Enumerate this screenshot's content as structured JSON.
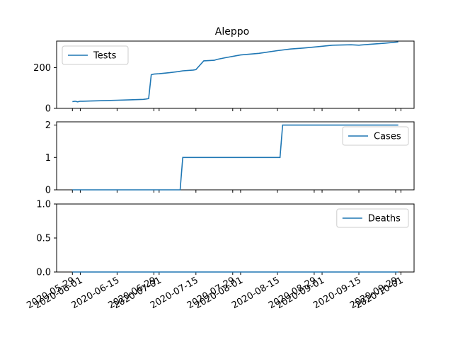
{
  "figure": {
    "title": "Aleppo",
    "series_color": "#1f77b4"
  },
  "shared_x": {
    "type": "date",
    "ticks": [
      "2020-05-29",
      "2020-06-01",
      "2020-06-15",
      "2020-06-29",
      "2020-07-01",
      "2020-07-15",
      "2020-07-29",
      "2020-08-01",
      "2020-08-15",
      "2020-08-29",
      "2020-09-01",
      "2020-09-15",
      "2020-09-29",
      "2020-10-01"
    ]
  },
  "chart_data": [
    {
      "type": "line",
      "title": "Aleppo",
      "xlabel": "",
      "ylabel": "",
      "ylim": [
        0,
        330
      ],
      "yticks": [
        0,
        200
      ],
      "legend": "top-left",
      "series": [
        {
          "name": "Tests",
          "x": [
            "2020-05-29",
            "2020-05-30",
            "2020-05-31",
            "2020-06-01",
            "2020-06-02",
            "2020-06-05",
            "2020-06-10",
            "2020-06-15",
            "2020-06-20",
            "2020-06-25",
            "2020-06-26",
            "2020-06-27",
            "2020-06-28",
            "2020-06-29",
            "2020-07-01",
            "2020-07-05",
            "2020-07-08",
            "2020-07-10",
            "2020-07-14",
            "2020-07-15",
            "2020-07-18",
            "2020-07-22",
            "2020-07-23",
            "2020-07-26",
            "2020-08-01",
            "2020-08-08",
            "2020-08-15",
            "2020-08-20",
            "2020-08-25",
            "2020-08-30",
            "2020-09-05",
            "2020-09-12",
            "2020-09-15",
            "2020-09-20",
            "2020-09-25",
            "2020-09-30"
          ],
          "values": [
            33,
            35,
            32,
            35,
            35,
            36,
            38,
            40,
            42,
            44,
            46,
            48,
            165,
            168,
            170,
            175,
            180,
            184,
            188,
            190,
            233,
            236,
            240,
            248,
            262,
            270,
            283,
            291,
            296,
            302,
            310,
            312,
            310,
            315,
            320,
            326
          ]
        }
      ]
    },
    {
      "type": "line",
      "xlabel": "",
      "ylabel": "",
      "ylim": [
        0,
        2.1
      ],
      "yticks": [
        0,
        1,
        2
      ],
      "legend": "top-right",
      "series": [
        {
          "name": "Cases",
          "x": [
            "2020-05-29",
            "2020-07-09",
            "2020-07-10",
            "2020-08-16",
            "2020-08-17",
            "2020-09-30"
          ],
          "values": [
            0,
            0,
            1,
            1,
            2,
            2
          ]
        }
      ]
    },
    {
      "type": "line",
      "xlabel": "",
      "ylabel": "",
      "ylim": [
        0,
        1
      ],
      "yticks": [
        0.0,
        0.5,
        1.0
      ],
      "legend": "top-right",
      "series": [
        {
          "name": "Deaths",
          "x": [
            "2020-05-29",
            "2020-09-30"
          ],
          "values": [
            0,
            0
          ]
        }
      ]
    }
  ]
}
